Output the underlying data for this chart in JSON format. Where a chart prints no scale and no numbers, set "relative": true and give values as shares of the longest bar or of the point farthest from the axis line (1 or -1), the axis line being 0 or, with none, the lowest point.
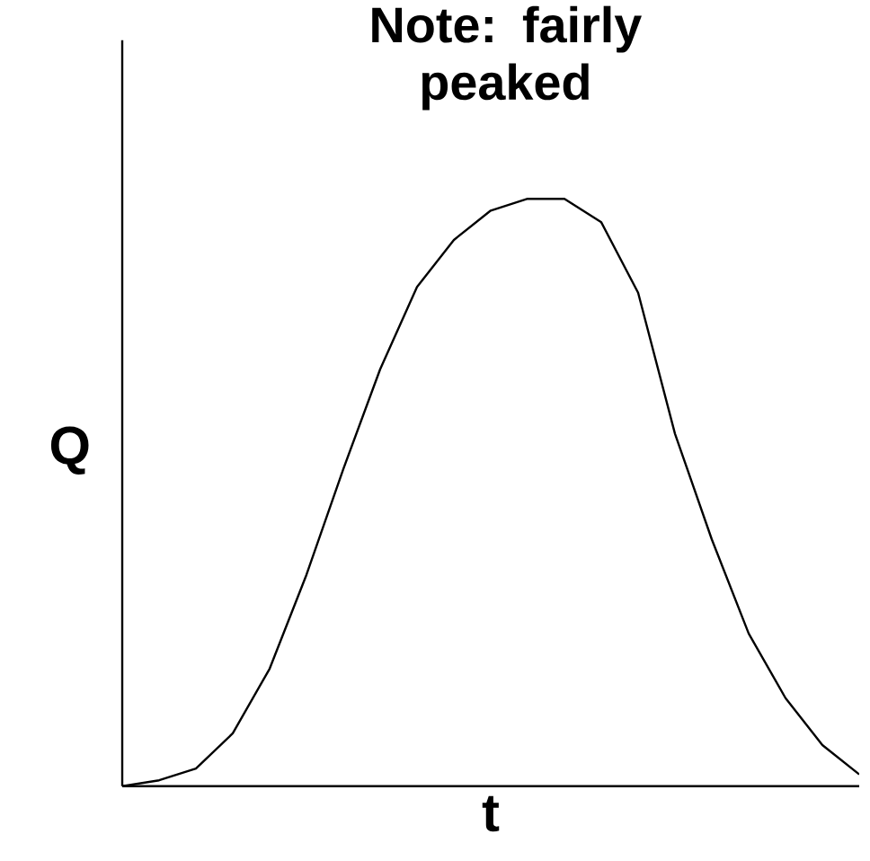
{
  "chart_data": {
    "type": "line",
    "title": "Note:  fairly peaked",
    "xlabel": "t",
    "ylabel": "Q",
    "relative": true,
    "categories": [
      null,
      null,
      null,
      null,
      null,
      null,
      null,
      null,
      null,
      null,
      null,
      null,
      null,
      null,
      null,
      null,
      null,
      null,
      null,
      null,
      null
    ],
    "series": [
      {
        "color": "#000000",
        "values": [
          0,
          0.01,
          0.03,
          0.09,
          0.2,
          0.36,
          0.54,
          0.71,
          0.85,
          0.93,
          0.98,
          1.0,
          1.0,
          0.96,
          0.84,
          0.6,
          0.42,
          0.26,
          0.15,
          0.07,
          0.02
        ]
      }
    ]
  }
}
